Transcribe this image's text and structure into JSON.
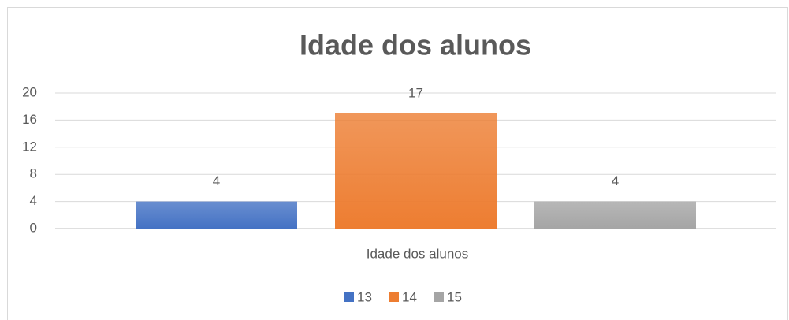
{
  "chart_data": {
    "type": "bar",
    "title": "Idade dos alunos",
    "categories": [
      "Idade dos alunos"
    ],
    "series": [
      {
        "name": "13",
        "color": "#4472c4",
        "values": [
          4
        ]
      },
      {
        "name": "14",
        "color": "#ed7d31",
        "values": [
          17
        ]
      },
      {
        "name": "15",
        "color": "#a5a5a5",
        "values": [
          4
        ]
      }
    ],
    "ylim": [
      0,
      20
    ],
    "yticks": [
      0,
      4,
      8,
      12,
      16,
      20
    ],
    "grid": true,
    "legend": "bottom"
  }
}
